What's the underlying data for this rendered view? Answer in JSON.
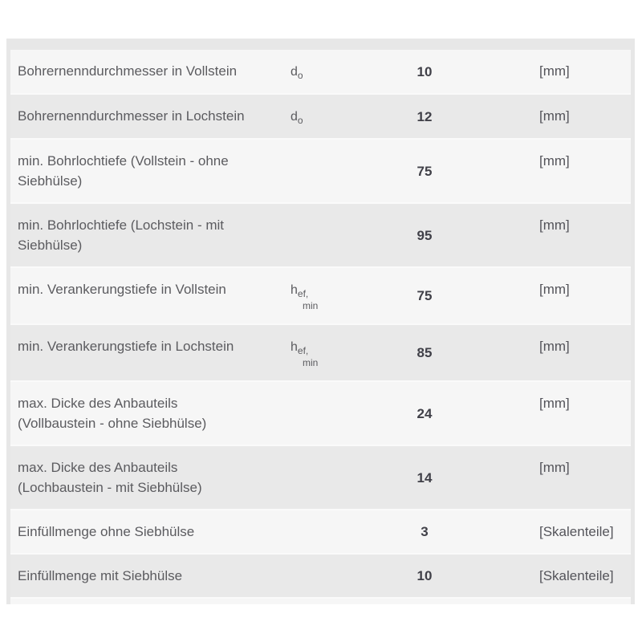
{
  "page": {
    "background_color": "#ffffff"
  },
  "table": {
    "container_color": "#e7e7e7",
    "row_light_color": "#f6f6f6",
    "row_dark_color": "#e9e9e9",
    "separator_color": "#fafafa",
    "label_color": "#5b5b5f",
    "value_color": "#404048",
    "rows": [
      {
        "label": "Bohrernenndurchmesser in Vollstein",
        "symbol_base": "d",
        "symbol_sub": "o",
        "symbol_sub2": "",
        "value": "10",
        "unit": "[mm]"
      },
      {
        "label": "Bohrernenndurchmesser in Lochstein",
        "symbol_base": "d",
        "symbol_sub": "o",
        "symbol_sub2": "",
        "value": "12",
        "unit": "[mm]"
      },
      {
        "label": "min. Bohrlochtiefe (Vollstein - ohne\nSiebhülse)",
        "symbol_base": "",
        "symbol_sub": "",
        "symbol_sub2": "",
        "value": "75",
        "unit": "[mm]"
      },
      {
        "label": "min. Bohrlochtiefe (Lochstein - mit\nSiebhülse)",
        "symbol_base": "",
        "symbol_sub": "",
        "symbol_sub2": "",
        "value": "95",
        "unit": "[mm]"
      },
      {
        "label": "min. Verankerungstiefe in Vollstein",
        "symbol_base": "h",
        "symbol_sub": "ef,",
        "symbol_sub2": "min",
        "value": "75",
        "unit": "[mm]"
      },
      {
        "label": "min. Verankerungstiefe in Lochstein",
        "symbol_base": "h",
        "symbol_sub": "ef,",
        "symbol_sub2": "min",
        "value": "85",
        "unit": "[mm]"
      },
      {
        "label": "max. Dicke des Anbauteils\n(Vollbaustein - ohne Siebhülse)",
        "symbol_base": "",
        "symbol_sub": "",
        "symbol_sub2": "",
        "value": "24",
        "unit": "[mm]"
      },
      {
        "label": "max. Dicke des Anbauteils\n(Lochbaustein - mit Siebhülse)",
        "symbol_base": "",
        "symbol_sub": "",
        "symbol_sub2": "",
        "value": "14",
        "unit": "[mm]"
      },
      {
        "label": "Einfüllmenge ohne Siebhülse",
        "symbol_base": "",
        "symbol_sub": "",
        "symbol_sub2": "",
        "value": "3",
        "unit": "[Skalenteile]"
      },
      {
        "label": "Einfüllmenge mit Siebhülse",
        "symbol_base": "",
        "symbol_sub": "",
        "symbol_sub2": "",
        "value": "10",
        "unit": "[Skalenteile]"
      },
      {
        "label": "",
        "symbol_base": "",
        "symbol_sub": "",
        "symbol_sub2": "",
        "value": "",
        "unit": ""
      }
    ]
  }
}
